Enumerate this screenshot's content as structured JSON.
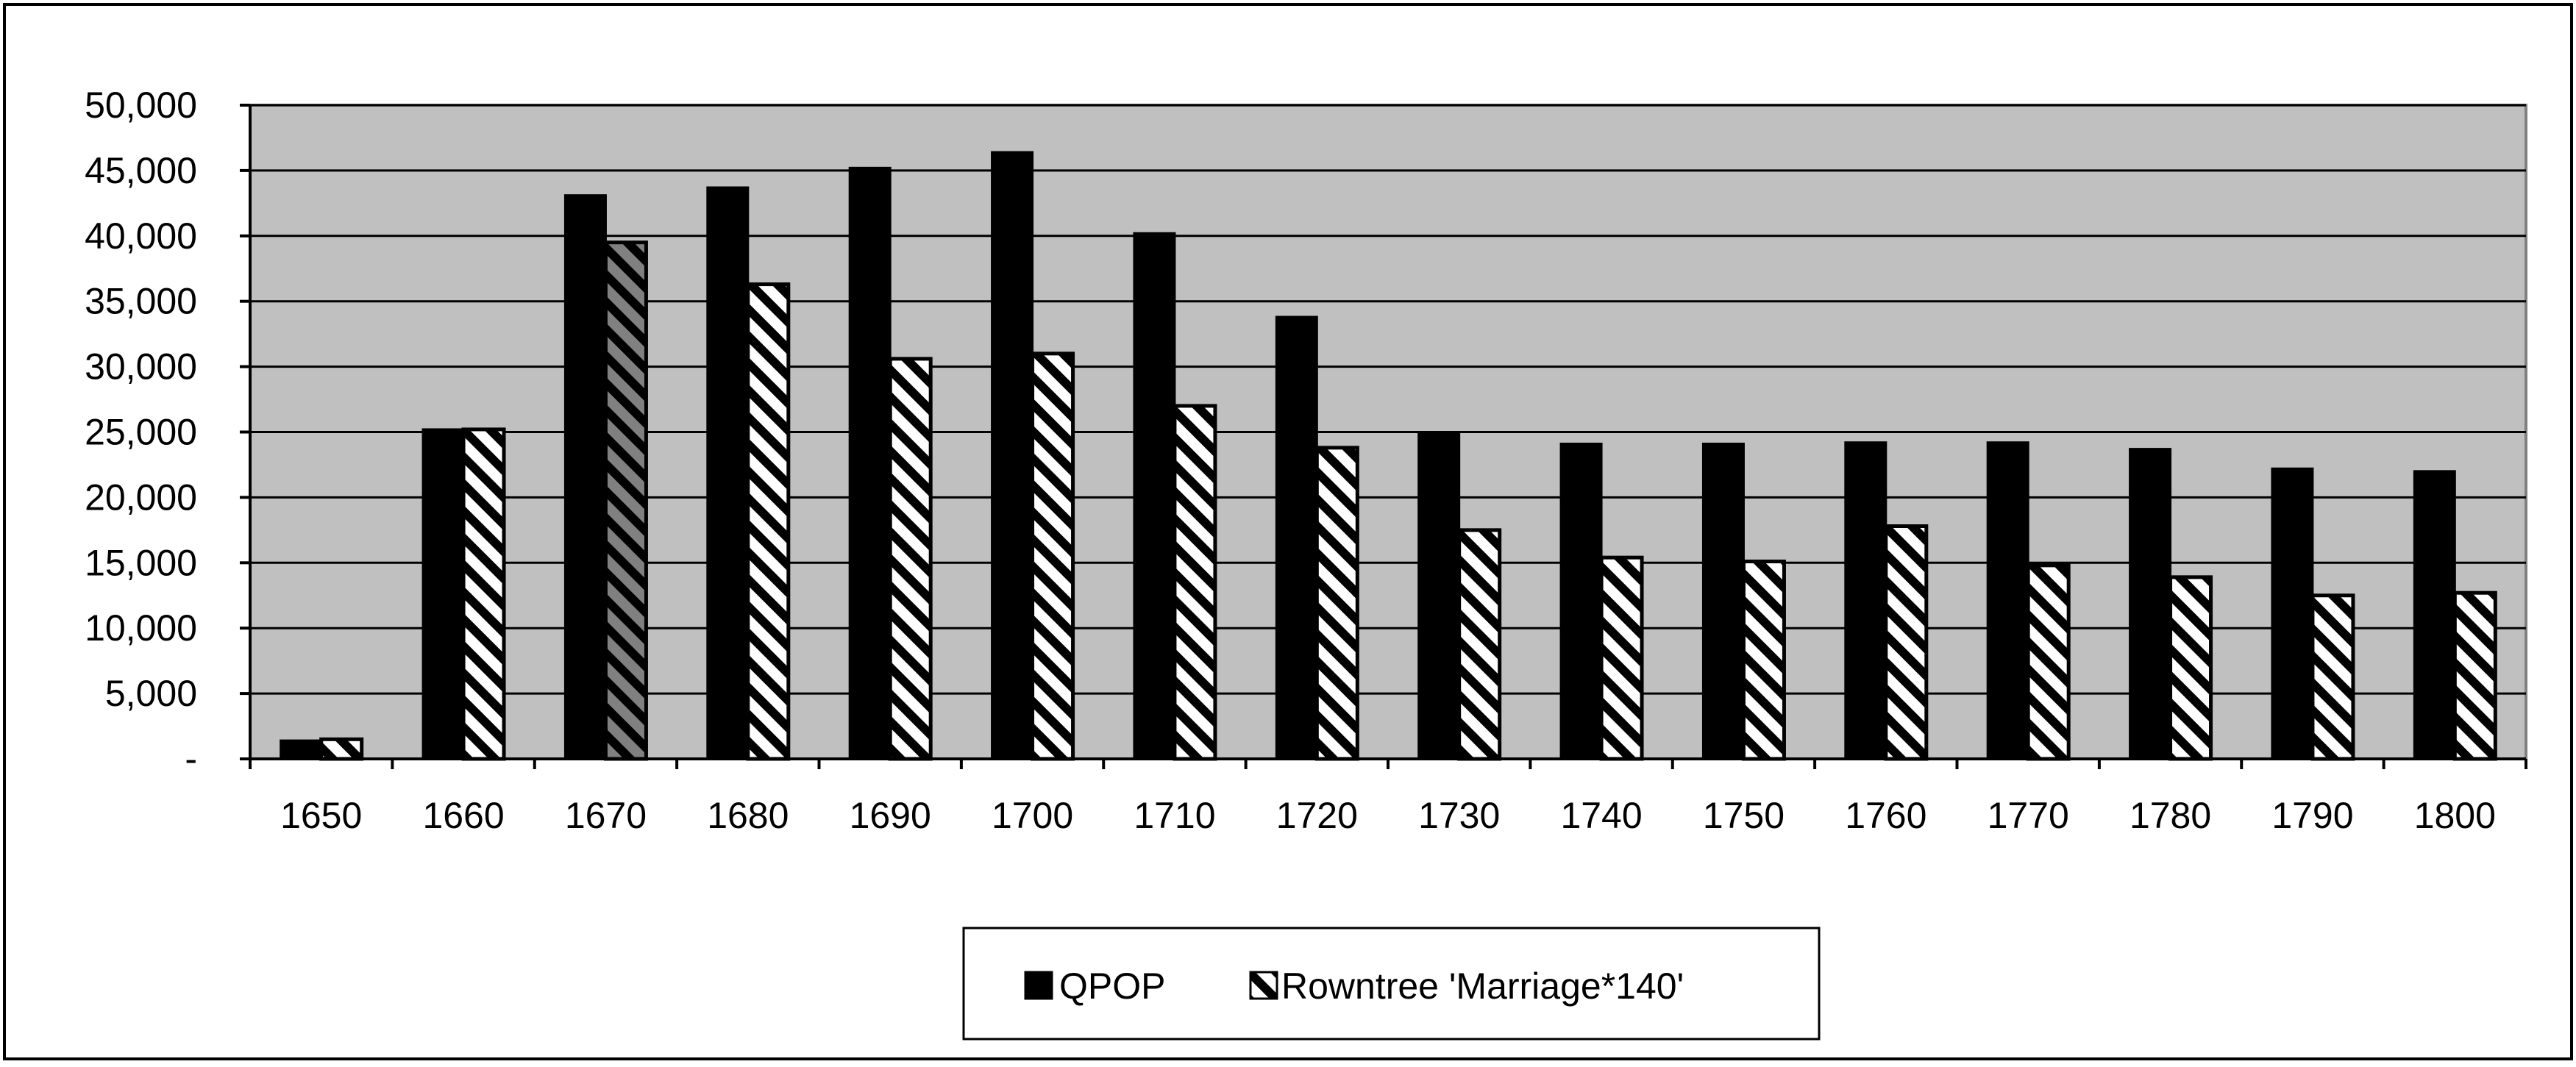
{
  "chart_data": {
    "type": "bar",
    "categories": [
      "1650",
      "1660",
      "1670",
      "1680",
      "1690",
      "1700",
      "1710",
      "1720",
      "1730",
      "1740",
      "1750",
      "1760",
      "1770",
      "1780",
      "1790",
      "1800"
    ],
    "series": [
      {
        "name": "QPOP",
        "pattern": "solid",
        "values": [
          1400,
          25200,
          43100,
          43700,
          45200,
          46400,
          40200,
          33800,
          24900,
          24100,
          24100,
          24200,
          24200,
          23700,
          22200,
          22000
        ]
      },
      {
        "name": "Rowntree 'Marriage*140'",
        "pattern": "diagonal-stripes",
        "values": [
          1500,
          25200,
          39500,
          36300,
          30600,
          31000,
          27000,
          23800,
          17500,
          15400,
          15100,
          17800,
          14800,
          13900,
          12500,
          12700
        ]
      }
    ],
    "ylim": [
      0,
      50000
    ],
    "y_ticks": [
      0,
      5000,
      10000,
      15000,
      20000,
      25000,
      30000,
      35000,
      40000,
      45000,
      50000
    ],
    "y_tick_labels": [
      "-",
      "5,000",
      "10,000",
      "15,000",
      "20,000",
      "25,000",
      "30,000",
      "35,000",
      "40,000",
      "45,000",
      "50,000"
    ],
    "grid": true,
    "legend_position": "bottom-center",
    "colors": {
      "plot_background": "#c0c0c0",
      "bar_solid": "#000000",
      "stripe": "#000000",
      "stripe_background": "#ffffff",
      "highlight_bar_background": "#808080"
    },
    "highlight_bar_index": 2
  }
}
